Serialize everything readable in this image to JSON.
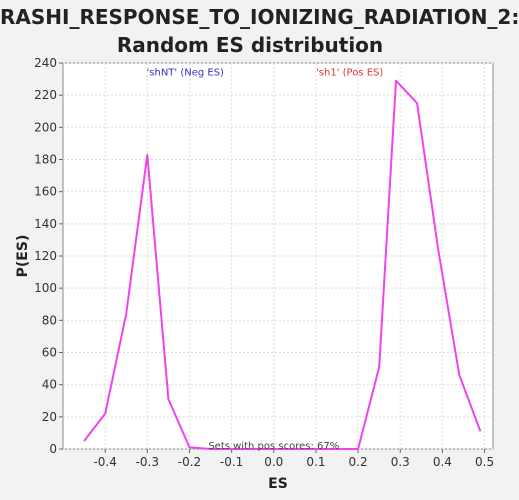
{
  "title_lines": [
    "RASHI_RESPONSE_TO_IONIZING_RADIATION_2:",
    "Random ES distribution"
  ],
  "chart_data": {
    "type": "line",
    "title": "RASHI_RESPONSE_TO_IONIZING_RADIATION_2: Random ES distribution",
    "xlabel": "ES",
    "ylabel": "P(ES)",
    "xlim": [
      -0.5,
      0.52
    ],
    "ylim": [
      0,
      240
    ],
    "xticks": [
      -0.4,
      -0.3,
      -0.2,
      -0.1,
      0.0,
      0.1,
      0.2,
      0.3,
      0.4,
      0.5
    ],
    "xtick_labels": [
      "-0.4",
      "-0.3",
      "-0.2",
      "-0.1",
      "0.0",
      "0.1",
      "0.2",
      "0.3",
      "0.4",
      "0.5"
    ],
    "yticks": [
      0,
      20,
      40,
      60,
      80,
      100,
      120,
      140,
      160,
      180,
      200,
      220,
      240
    ],
    "ytick_labels": [
      "0",
      "20",
      "40",
      "60",
      "80",
      "100",
      "120",
      "140",
      "160",
      "180",
      "200",
      "220",
      "240"
    ],
    "grid": true,
    "series": [
      {
        "color": "#ee44ee",
        "x": [
          -0.45,
          -0.4,
          -0.35,
          -0.3,
          -0.25,
          -0.2,
          -0.15,
          -0.1,
          -0.05,
          0.0,
          0.05,
          0.1,
          0.15,
          0.2,
          0.25,
          0.29,
          0.34,
          0.39,
          0.44,
          0.49
        ],
        "y": [
          5,
          22,
          84,
          183,
          31,
          1,
          0,
          0,
          0,
          0,
          0,
          0,
          0,
          0,
          51,
          229,
          215,
          124,
          46,
          11
        ]
      }
    ],
    "annotations": [
      {
        "text": "'shNT' (Neg ES)",
        "x": -0.21,
        "y": 234,
        "color": "#3333cc"
      },
      {
        "text": "'sh1' (Pos ES)",
        "x": 0.18,
        "y": 234,
        "color": "#dd3333"
      },
      {
        "text": "Sets with pos scores: 67%",
        "x": 0.0,
        "y": 2,
        "color": "#444444"
      }
    ]
  }
}
